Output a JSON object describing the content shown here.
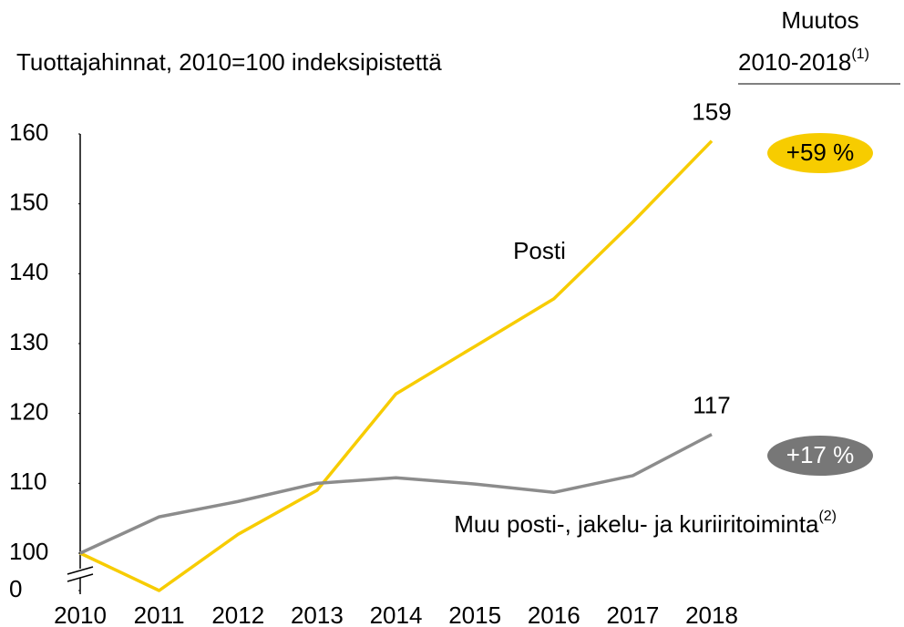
{
  "chart_data": {
    "type": "line",
    "title": "Tuottajahinnat, 2010=100 indeksipistettä",
    "change_header": [
      "Muutos",
      "2010-2018"
    ],
    "change_header_note": "(1)",
    "x": [
      2010,
      2011,
      2012,
      2013,
      2014,
      2015,
      2016,
      2017,
      2018
    ],
    "xlim": [
      2010,
      2018
    ],
    "xticks": [
      2010,
      2011,
      2012,
      2013,
      2014,
      2015,
      2016,
      2017,
      2018
    ],
    "ylim": [
      100,
      160
    ],
    "yticks": [
      0,
      100,
      110,
      120,
      130,
      140,
      150,
      160
    ],
    "axis_break": true,
    "series": [
      {
        "name": "Posti",
        "color": "#f7cc00",
        "values": [
          100,
          98.4,
          102.7,
          109,
          122.8,
          129.6,
          136.4,
          147.4,
          159
        ],
        "change": "+59 %",
        "change_color": "#f7cc00"
      },
      {
        "name": "Muu posti-, jakelu- ja kuriiritoiminta",
        "name_note": "(2)",
        "color": "#8c8c8c",
        "values": [
          100,
          105.2,
          107.4,
          110,
          110.8,
          109.9,
          108.7,
          111.1,
          117
        ],
        "change": "+17 %",
        "change_color": "#777777"
      }
    ]
  }
}
